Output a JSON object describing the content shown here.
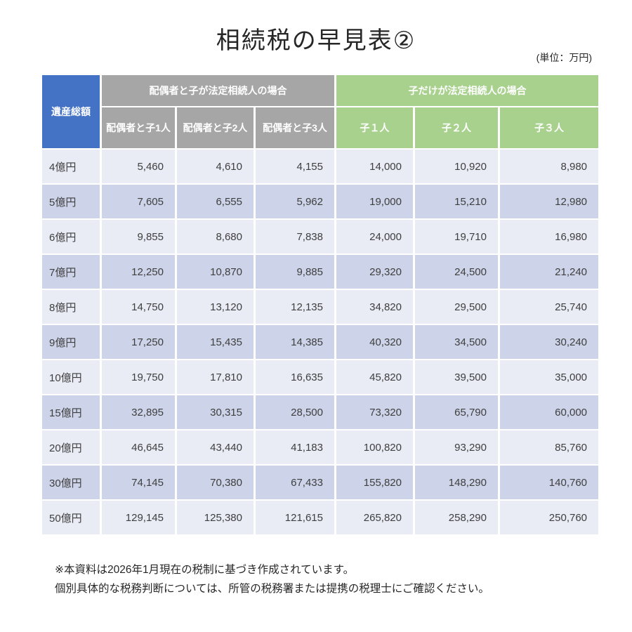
{
  "title": "相続税の早見表②",
  "unit_note": "(単位：万円)",
  "colors": {
    "corner_header_bg": "#4472C4",
    "spouse_group_bg": "#A6A6A6",
    "child_group_bg": "#A9D18E",
    "band_light": "#E9EBF5",
    "band_dark": "#CDD3E8",
    "header_text": "#FFFFFF",
    "body_text": "#3F3F3F"
  },
  "table": {
    "corner_header": "遺産総額",
    "group_headers": [
      {
        "label": "配偶者と子が法定相続人の場合"
      },
      {
        "label": "子だけが法定相続人の場合"
      }
    ],
    "sub_headers": [
      "配偶者と子1人",
      "配偶者と子2人",
      "配偶者と子3人",
      "子１人",
      "子２人",
      "子３人"
    ],
    "rows": [
      {
        "label": "4億円",
        "values": [
          "5,460",
          "4,610",
          "4,155",
          "14,000",
          "10,920",
          "8,980"
        ]
      },
      {
        "label": "5億円",
        "values": [
          "7,605",
          "6,555",
          "5,962",
          "19,000",
          "15,210",
          "12,980"
        ]
      },
      {
        "label": "6億円",
        "values": [
          "9,855",
          "8,680",
          "7,838",
          "24,000",
          "19,710",
          "16,980"
        ]
      },
      {
        "label": "7億円",
        "values": [
          "12,250",
          "10,870",
          "9,885",
          "29,320",
          "24,500",
          "21,240"
        ]
      },
      {
        "label": "8億円",
        "values": [
          "14,750",
          "13,120",
          "12,135",
          "34,820",
          "29,500",
          "25,740"
        ]
      },
      {
        "label": "9億円",
        "values": [
          "17,250",
          "15,435",
          "14,385",
          "40,320",
          "34,500",
          "30,240"
        ]
      },
      {
        "label": "10億円",
        "values": [
          "19,750",
          "17,810",
          "16,635",
          "45,820",
          "39,500",
          "35,000"
        ]
      },
      {
        "label": "15億円",
        "values": [
          "32,895",
          "30,315",
          "28,500",
          "73,320",
          "65,790",
          "60,000"
        ]
      },
      {
        "label": "20億円",
        "values": [
          "46,645",
          "43,440",
          "41,183",
          "100,820",
          "93,290",
          "85,760"
        ]
      },
      {
        "label": "30億円",
        "values": [
          "74,145",
          "70,380",
          "67,433",
          "155,820",
          "148,290",
          "140,760"
        ]
      },
      {
        "label": "50億円",
        "values": [
          "129,145",
          "125,380",
          "121,615",
          "265,820",
          "258,290",
          "250,760"
        ]
      }
    ]
  },
  "notes": [
    "※本資料は2026年1月現在の税制に基づき作成されています。",
    "個別具体的な税務判断については、所管の税務署または提携の税理士にご確認ください。"
  ]
}
